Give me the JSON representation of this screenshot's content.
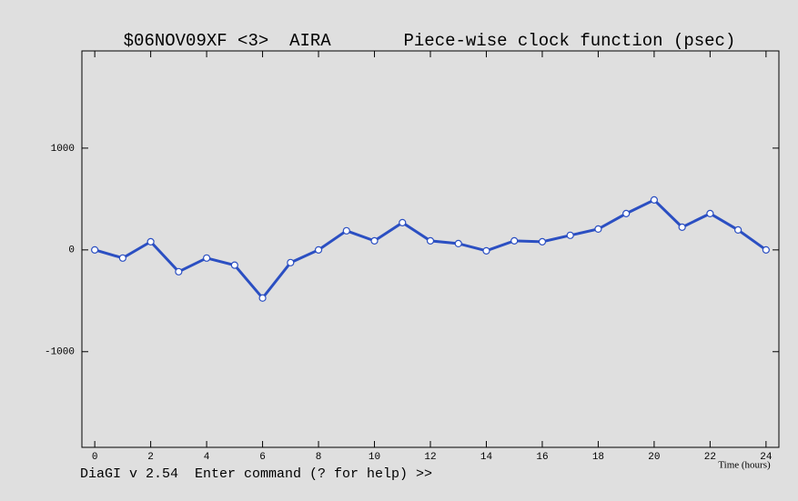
{
  "chart_data": {
    "type": "line",
    "title": "$06NOV09XF <3>  AIRA       Piece-wise clock function (psec)",
    "x_label": "Time (hours)",
    "x": [
      0,
      1,
      2,
      3,
      4,
      5,
      6,
      7,
      8,
      9,
      10,
      11,
      12,
      13,
      14,
      15,
      16,
      17,
      18,
      19,
      20,
      21,
      22,
      23,
      24
    ],
    "series": [
      {
        "color": "#2b4fc2",
        "values": [
          0,
          -80,
          80,
          -214,
          -80,
          -150,
          -473,
          -125,
          0,
          188,
          89,
          268,
          89,
          62,
          -9,
          89,
          80,
          143,
          205,
          357,
          491,
          223,
          357,
          196,
          0
        ]
      }
    ],
    "xlim": [
      -0.46,
      24.46
    ],
    "xticks": [
      0,
      2,
      4,
      6,
      8,
      10,
      12,
      14,
      16,
      18,
      20,
      22,
      24
    ],
    "ylim": [
      -1940,
      1955
    ],
    "yticks": [
      -1000,
      0,
      1000
    ]
  },
  "prompt": "DiaGI v 2.54  Enter command (? for help) >>"
}
